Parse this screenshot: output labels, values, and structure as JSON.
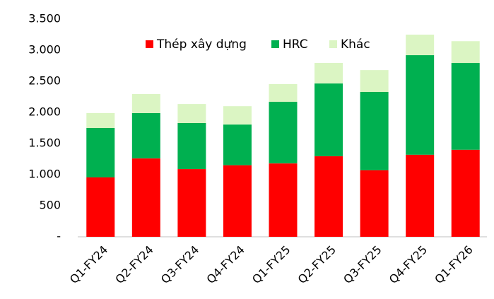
{
  "chart_data": {
    "type": "stacked_bar",
    "categories": [
      "Q1-FY24",
      "Q2-FY24",
      "Q3-FY24",
      "Q4-FY24",
      "Q1-FY25",
      "Q2-FY25",
      "Q3-FY25",
      "Q4-FY25",
      "Q1-FY26"
    ],
    "series": [
      {
        "name": "Thép xây dựng",
        "color": "#ff0000",
        "values": [
          955,
          1260,
          1090,
          1150,
          1180,
          1295,
          1070,
          1320,
          1400
        ]
      },
      {
        "name": "HRC",
        "color": "#00b050",
        "values": [
          795,
          730,
          740,
          655,
          990,
          1170,
          1260,
          1600,
          1395
        ]
      },
      {
        "name": "Khác",
        "color": "#dbf5c3",
        "values": [
          240,
          305,
          305,
          295,
          285,
          330,
          350,
          330,
          350
        ]
      }
    ],
    "ylim": [
      0,
      3500
    ],
    "yticks": [
      {
        "value": 0,
        "label": "-"
      },
      500,
      {
        "value": 1000,
        "label": "1.000"
      },
      {
        "value": 1500,
        "label": "1.500"
      },
      {
        "value": 2000,
        "label": "2.000"
      },
      {
        "value": 2500,
        "label": "2.500"
      },
      {
        "value": 3000,
        "label": "3.000"
      },
      {
        "value": 3500,
        "label": "3.500"
      }
    ],
    "legend": "top"
  }
}
